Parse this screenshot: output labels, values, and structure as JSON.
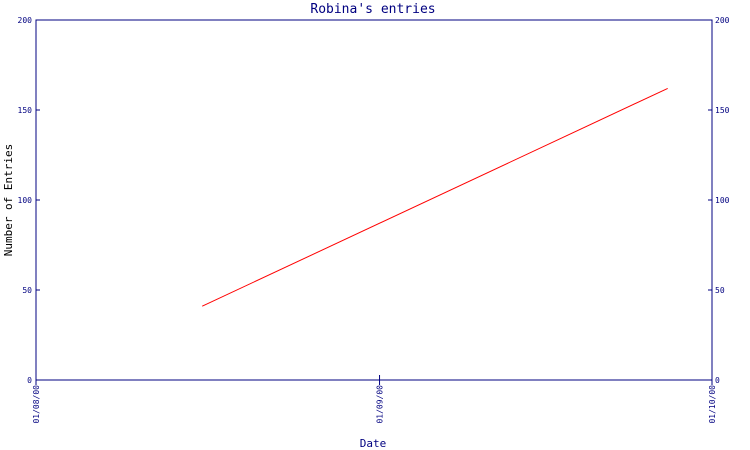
{
  "chart_data": {
    "type": "line",
    "title": "Robina's entries",
    "xlabel": "Date",
    "ylabel": "Number of Entries",
    "x_ticks": [
      "01/08/00",
      "01/09/00",
      "01/10/00"
    ],
    "y_ticks": [
      0,
      50,
      100,
      150,
      200
    ],
    "ylim": [
      0,
      200
    ],
    "xlim": [
      "01/08/00",
      "01/10/00"
    ],
    "series": [
      {
        "x": [
          "16/08/00",
          "27/09/00"
        ],
        "y": [
          41,
          162
        ],
        "color": "#ff0000"
      }
    ],
    "axis_color": "#000080",
    "grid": false,
    "y_axis_both_sides": true
  }
}
